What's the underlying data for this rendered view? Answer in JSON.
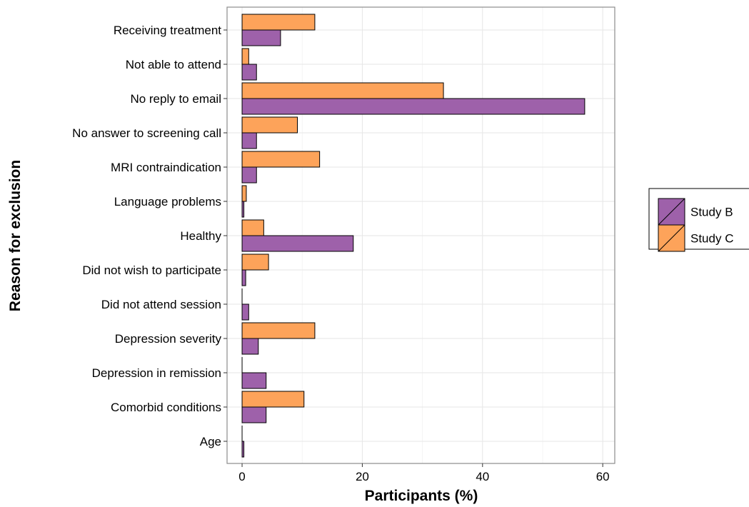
{
  "chart_data": {
    "type": "bar",
    "orientation": "horizontal",
    "title": "",
    "xlabel": "Participants (%)",
    "ylabel": "Reason for exclusion",
    "xlim": [
      -2.5,
      62
    ],
    "xticks": [
      0,
      20,
      40,
      60
    ],
    "grid": true,
    "legend_position": "right",
    "categories": [
      "Receiving treatment",
      "Not able to attend",
      "No reply to email",
      "No answer to screening call",
      "MRI contraindication",
      "Language problems",
      "Healthy",
      "Did not wish to participate",
      "Did not attend session",
      "Depression severity",
      "Depression in remission",
      "Comorbid conditions",
      "Age"
    ],
    "series": [
      {
        "name": "Study B",
        "color": "#9e61aa",
        "values": [
          6.4,
          2.4,
          57.0,
          2.4,
          2.4,
          0.3,
          18.5,
          0.6,
          1.1,
          2.7,
          4.0,
          4.0,
          0.3
        ]
      },
      {
        "name": "Study C",
        "color": "#fda35a",
        "values": [
          12.1,
          1.1,
          33.5,
          9.2,
          12.9,
          0.7,
          3.6,
          4.4,
          0,
          12.1,
          0,
          10.3,
          0
        ]
      }
    ]
  }
}
